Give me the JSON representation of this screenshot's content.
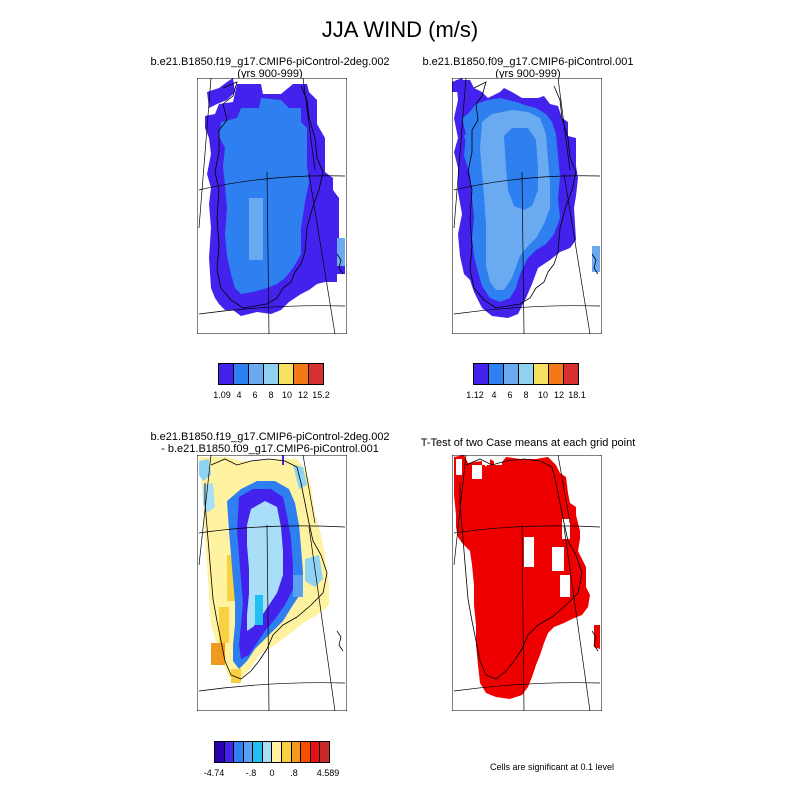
{
  "title": "JJA WIND (m/s)",
  "panels": [
    {
      "id": "case1",
      "title_line1": "b.e21.B1850.f19_g17.CMIP6-piControl-2deg.002",
      "title_line2": "(yrs 900-999)",
      "colorbar": {
        "colors": [
          "#4422ee",
          "#2e7ff0",
          "#6aaaf0",
          "#8fd2f2",
          "#f8e060",
          "#f27818",
          "#d73030"
        ],
        "labels": [
          "1.09",
          "4",
          "6",
          "8",
          "10",
          "12",
          "15.2"
        ]
      }
    },
    {
      "id": "case2",
      "title_line1": "b.e21.B1850.f09_g17.CMIP6-piControl.001",
      "title_line2": "(yrs 900-999)",
      "colorbar": {
        "colors": [
          "#4422ee",
          "#2e7ff0",
          "#6aaaf0",
          "#8fd2f2",
          "#f8e060",
          "#f27818",
          "#d73030"
        ],
        "labels": [
          "1.12",
          "4",
          "6",
          "8",
          "10",
          "12",
          "18.1"
        ]
      }
    },
    {
      "id": "difference",
      "title_line1": "b.e21.B1850.f19_g17.CMIP6-piControl-2deg.002",
      "title_line2": "- b.e21.B1850.f09_g17.CMIP6-piControl.001",
      "colorbar": {
        "colors": [
          "#2a00b0",
          "#4422ee",
          "#2e7ff0",
          "#5aa0f0",
          "#22c0f0",
          "#a8def8",
          "#fff2a0",
          "#f8d040",
          "#f29a20",
          "#f25000",
          "#e81010",
          "#c82828"
        ],
        "labels": [
          "-4.74",
          "-.8",
          "0",
          ".8",
          "4.589"
        ]
      }
    },
    {
      "id": "ttest",
      "title_line1": "T-Test of two Case means at each grid point",
      "title_line2": "",
      "significant_color": "#ee0000"
    }
  ],
  "footnote": "Cells are significant at 0.1 level"
}
